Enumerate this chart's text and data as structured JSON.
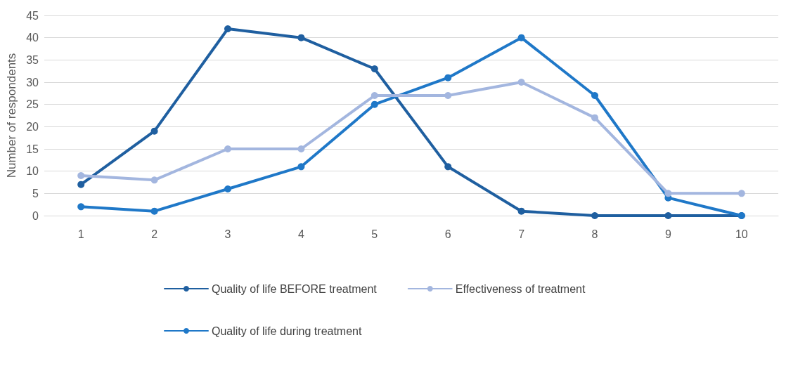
{
  "chart_data": {
    "type": "line",
    "ylabel": "Number of respondents",
    "categories": [
      "1",
      "2",
      "3",
      "4",
      "5",
      "6",
      "7",
      "8",
      "9",
      "10"
    ],
    "series": [
      {
        "name": "Quality of life BEFORE treatment",
        "color": "#1f5fa0",
        "values": [
          7,
          19,
          42,
          40,
          33,
          11,
          1,
          0,
          0,
          0
        ]
      },
      {
        "name": "Quality of life during treatment",
        "color": "#1f78c8",
        "values": [
          2,
          1,
          6,
          11,
          25,
          31,
          40,
          27,
          4,
          0
        ]
      },
      {
        "name": "Effectiveness of treatment",
        "color": "#a3b6df",
        "values": [
          9,
          8,
          15,
          15,
          27,
          27,
          30,
          22,
          5,
          5
        ]
      }
    ],
    "ylim": [
      0,
      45
    ],
    "yticks": [
      0,
      5,
      10,
      15,
      20,
      25,
      30,
      35,
      40,
      45
    ],
    "grid": "y",
    "legend": "bottom",
    "marker": "circle",
    "line_style": "solid"
  }
}
